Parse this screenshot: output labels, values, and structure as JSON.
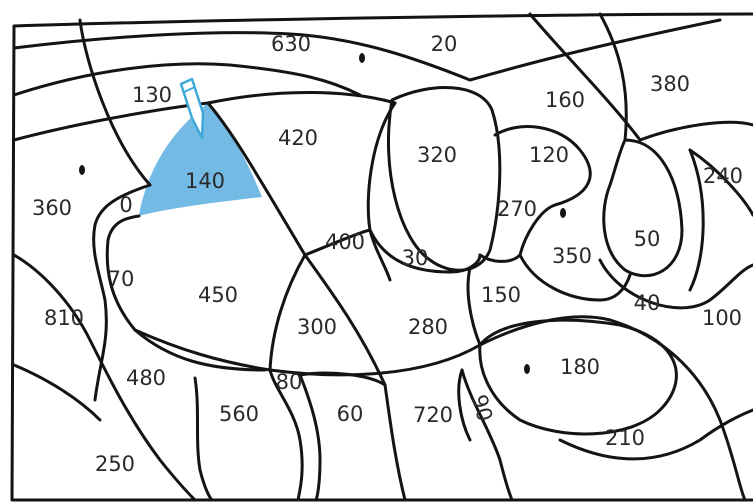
{
  "colors": {
    "line": "#141414",
    "fill_shaded": "#5aaee0",
    "pencil_outline": "#3ea9d8",
    "background": "#ffffff"
  },
  "regions": [
    {
      "label": "630",
      "shaded": false
    },
    {
      "label": "20",
      "shaded": false
    },
    {
      "label": "380",
      "shaded": false
    },
    {
      "label": "130",
      "shaded": false
    },
    {
      "label": "160",
      "shaded": false
    },
    {
      "label": "420",
      "shaded": false
    },
    {
      "label": "320",
      "shaded": false
    },
    {
      "label": "120",
      "shaded": false
    },
    {
      "label": "240",
      "shaded": false
    },
    {
      "label": "140",
      "shaded": true
    },
    {
      "label": "360",
      "shaded": false
    },
    {
      "label": "0",
      "shaded": false
    },
    {
      "label": "270",
      "shaded": false
    },
    {
      "label": "50",
      "shaded": false
    },
    {
      "label": "400",
      "shaded": false
    },
    {
      "label": "30",
      "shaded": false
    },
    {
      "label": "350",
      "shaded": false
    },
    {
      "label": "70",
      "shaded": false
    },
    {
      "label": "450",
      "shaded": false
    },
    {
      "label": "150",
      "shaded": false
    },
    {
      "label": "40",
      "shaded": false
    },
    {
      "label": "810",
      "shaded": false
    },
    {
      "label": "300",
      "shaded": false
    },
    {
      "label": "280",
      "shaded": false
    },
    {
      "label": "100",
      "shaded": false
    },
    {
      "label": "180",
      "shaded": false
    },
    {
      "label": "480",
      "shaded": false
    },
    {
      "label": "80",
      "shaded": false
    },
    {
      "label": "560",
      "shaded": false
    },
    {
      "label": "60",
      "shaded": false
    },
    {
      "label": "720",
      "shaded": false
    },
    {
      "label": "90",
      "shaded": false
    },
    {
      "label": "210",
      "shaded": false
    },
    {
      "label": "250",
      "shaded": false
    }
  ],
  "icons": {
    "pencil": "pencil-icon",
    "dot": "dot-icon"
  }
}
